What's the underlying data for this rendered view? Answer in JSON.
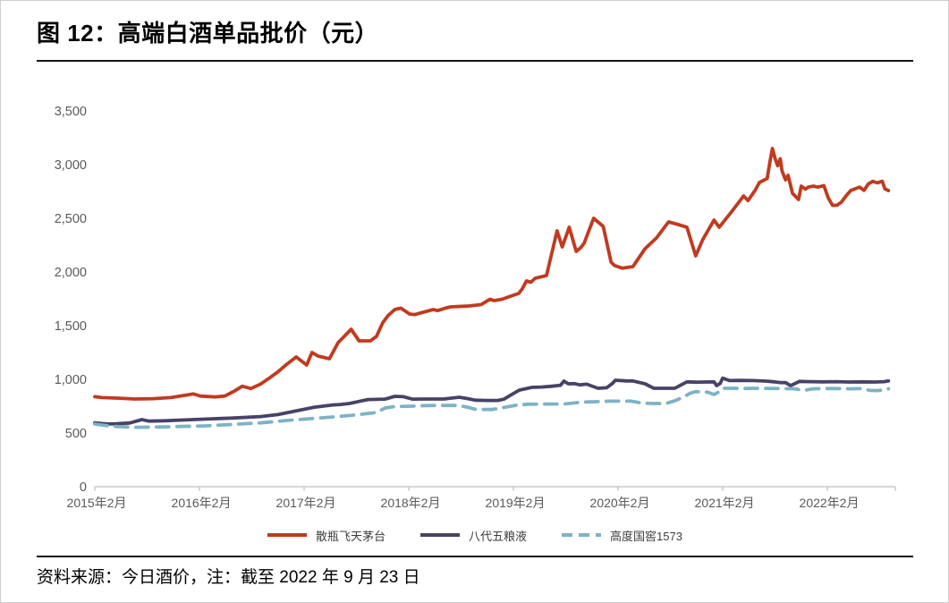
{
  "header": {
    "title": "图 12：高端白酒单品批价（元）"
  },
  "footer": {
    "source_note": "资料来源：今日酒价，注：截至 2022 年 9 月 23 日"
  },
  "chart_data": {
    "type": "line",
    "title": "高端白酒单品批价（元）",
    "x_unit": "months since 2015-02",
    "xlim": [
      0,
      91.8
    ],
    "ylim": [
      0,
      3500
    ],
    "grid": false,
    "legend_position": "bottom",
    "axis_color": "#c8c8c8",
    "label_color": "#595959",
    "y_ticks": [
      0,
      500,
      1000,
      1500,
      2000,
      2500,
      3000,
      3500
    ],
    "y_tick_labels": [
      "0",
      "500",
      "1,000",
      "1,500",
      "2,000",
      "2,500",
      "3,000",
      "3,500"
    ],
    "x_tick_month_positions": [
      0,
      12,
      24,
      36,
      48,
      60,
      72,
      84
    ],
    "x_tick_labels": [
      "2015年2月",
      "2016年2月",
      "2017年2月",
      "2018年2月",
      "2019年2月",
      "2020年2月",
      "2021年2月",
      "2022年2月"
    ],
    "series": [
      {
        "name": "散瓶飞天茅台",
        "color": "#c13a1f",
        "dash": null,
        "points": [
          [
            0,
            838
          ],
          [
            0.8,
            830
          ],
          [
            2.6,
            825
          ],
          [
            4.6,
            817
          ],
          [
            6.7,
            820
          ],
          [
            8.7,
            830
          ],
          [
            10.5,
            853
          ],
          [
            11.3,
            864
          ],
          [
            12.1,
            844
          ],
          [
            13.8,
            836
          ],
          [
            14.9,
            844
          ],
          [
            15.9,
            886
          ],
          [
            16.9,
            936
          ],
          [
            17.9,
            914
          ],
          [
            19,
            956
          ],
          [
            20,
            1011
          ],
          [
            21,
            1070
          ],
          [
            22,
            1140
          ],
          [
            23.1,
            1208
          ],
          [
            24.3,
            1133
          ],
          [
            24.9,
            1250
          ],
          [
            25.6,
            1217
          ],
          [
            26.9,
            1192
          ],
          [
            27.9,
            1342
          ],
          [
            28.9,
            1425
          ],
          [
            29.4,
            1467
          ],
          [
            30.3,
            1358
          ],
          [
            31.6,
            1358
          ],
          [
            32.3,
            1400
          ],
          [
            33,
            1525
          ],
          [
            33.6,
            1592
          ],
          [
            34.4,
            1650
          ],
          [
            35.1,
            1663
          ],
          [
            36.1,
            1608
          ],
          [
            36.7,
            1603
          ],
          [
            38.8,
            1650
          ],
          [
            39.3,
            1640
          ],
          [
            40.2,
            1663
          ],
          [
            40.8,
            1675
          ],
          [
            42.9,
            1683
          ],
          [
            44.3,
            1696
          ],
          [
            45.3,
            1746
          ],
          [
            45.8,
            1733
          ],
          [
            46.7,
            1746
          ],
          [
            47.7,
            1775
          ],
          [
            48.6,
            1800
          ],
          [
            49,
            1842
          ],
          [
            49.5,
            1917
          ],
          [
            50,
            1904
          ],
          [
            50.5,
            1942
          ],
          [
            51.8,
            1967
          ],
          [
            53,
            2383
          ],
          [
            53.6,
            2233
          ],
          [
            54.4,
            2417
          ],
          [
            55.2,
            2192
          ],
          [
            55.7,
            2225
          ],
          [
            56.1,
            2267
          ],
          [
            57.2,
            2500
          ],
          [
            58.3,
            2425
          ],
          [
            59.2,
            2092
          ],
          [
            59.6,
            2060
          ],
          [
            60.5,
            2035
          ],
          [
            61.7,
            2050
          ],
          [
            63.1,
            2217
          ],
          [
            64.4,
            2317
          ],
          [
            65.8,
            2467
          ],
          [
            66.9,
            2442
          ],
          [
            67.9,
            2417
          ],
          [
            68.9,
            2150
          ],
          [
            69.7,
            2300
          ],
          [
            71,
            2483
          ],
          [
            71.6,
            2417
          ],
          [
            73,
            2560
          ],
          [
            74.4,
            2708
          ],
          [
            74.9,
            2665
          ],
          [
            75.7,
            2758
          ],
          [
            76.2,
            2833
          ],
          [
            77.1,
            2870
          ],
          [
            77.4,
            3022
          ],
          [
            77.7,
            3150
          ],
          [
            78,
            3058
          ],
          [
            78.3,
            2990
          ],
          [
            78.6,
            3055
          ],
          [
            78.8,
            2942
          ],
          [
            79.2,
            2858
          ],
          [
            79.5,
            2900
          ],
          [
            80,
            2733
          ],
          [
            80.7,
            2675
          ],
          [
            81,
            2800
          ],
          [
            81.5,
            2772
          ],
          [
            81.8,
            2790
          ],
          [
            82.4,
            2800
          ],
          [
            82.9,
            2790
          ],
          [
            83.6,
            2805
          ],
          [
            84.1,
            2690
          ],
          [
            84.6,
            2620
          ],
          [
            85.1,
            2622
          ],
          [
            85.6,
            2650
          ],
          [
            86.2,
            2715
          ],
          [
            86.7,
            2760
          ],
          [
            87.2,
            2775
          ],
          [
            87.7,
            2790
          ],
          [
            88.2,
            2760
          ],
          [
            88.7,
            2820
          ],
          [
            89.2,
            2845
          ],
          [
            89.7,
            2830
          ],
          [
            90.3,
            2845
          ],
          [
            90.6,
            2775
          ],
          [
            91,
            2758
          ]
        ]
      },
      {
        "name": "八代五粮液",
        "color": "#494166",
        "dash": null,
        "points": [
          [
            0,
            594
          ],
          [
            0.8,
            588
          ],
          [
            1.5,
            584
          ],
          [
            2.5,
            586
          ],
          [
            4,
            593
          ],
          [
            5.4,
            625
          ],
          [
            6.2,
            611
          ],
          [
            8,
            614
          ],
          [
            9.7,
            620
          ],
          [
            12.8,
            630
          ],
          [
            15.9,
            640
          ],
          [
            19,
            653
          ],
          [
            21,
            672
          ],
          [
            23.1,
            706
          ],
          [
            25.1,
            739
          ],
          [
            27.2,
            761
          ],
          [
            28.2,
            766
          ],
          [
            29.2,
            775
          ],
          [
            30.3,
            794
          ],
          [
            31.3,
            812
          ],
          [
            33.3,
            816
          ],
          [
            34.4,
            842
          ],
          [
            35.4,
            838
          ],
          [
            36.4,
            816
          ],
          [
            38,
            817
          ],
          [
            40,
            817
          ],
          [
            41.8,
            833
          ],
          [
            42.8,
            820
          ],
          [
            43.6,
            806
          ],
          [
            45,
            803
          ],
          [
            46.2,
            803
          ],
          [
            46.9,
            815
          ],
          [
            47.8,
            858
          ],
          [
            48.7,
            900
          ],
          [
            50.1,
            925
          ],
          [
            51.2,
            928
          ],
          [
            52.3,
            935
          ],
          [
            53.4,
            945
          ],
          [
            53.8,
            983
          ],
          [
            54.3,
            958
          ],
          [
            55,
            960
          ],
          [
            55.6,
            948
          ],
          [
            56.4,
            955
          ],
          [
            57.7,
            917
          ],
          [
            58.7,
            922
          ],
          [
            59.3,
            958
          ],
          [
            59.7,
            992
          ],
          [
            61,
            985
          ],
          [
            61.7,
            985
          ],
          [
            63.1,
            958
          ],
          [
            64.1,
            917
          ],
          [
            66.5,
            917
          ],
          [
            67.9,
            977
          ],
          [
            69,
            973
          ],
          [
            70,
            975
          ],
          [
            71,
            977
          ],
          [
            71.3,
            942
          ],
          [
            71.7,
            962
          ],
          [
            72,
            1011
          ],
          [
            72.8,
            988
          ],
          [
            74,
            990
          ],
          [
            75.5,
            988
          ],
          [
            77,
            983
          ],
          [
            77.9,
            977
          ],
          [
            78.6,
            970
          ],
          [
            79.2,
            969
          ],
          [
            79.8,
            942
          ],
          [
            80.8,
            981
          ],
          [
            82,
            978
          ],
          [
            83.5,
            977
          ],
          [
            85,
            978
          ],
          [
            86.5,
            975
          ],
          [
            88,
            977
          ],
          [
            89.5,
            975
          ],
          [
            90.5,
            978
          ],
          [
            91,
            985
          ]
        ]
      },
      {
        "name": "高度国窖1573",
        "color": "#7eb2c6",
        "dash": [
          14,
          9
        ],
        "points": [
          [
            0,
            583
          ],
          [
            1,
            572
          ],
          [
            2,
            563
          ],
          [
            3,
            558
          ],
          [
            4.6,
            553
          ],
          [
            6.7,
            555
          ],
          [
            8.7,
            558
          ],
          [
            9.7,
            561
          ],
          [
            12.8,
            567
          ],
          [
            15.9,
            581
          ],
          [
            19,
            594
          ],
          [
            22,
            617
          ],
          [
            25.1,
            636
          ],
          [
            28.2,
            656
          ],
          [
            30.3,
            672
          ],
          [
            32.3,
            692
          ],
          [
            33.3,
            733
          ],
          [
            34.4,
            747
          ],
          [
            36.4,
            750
          ],
          [
            38,
            756
          ],
          [
            40,
            757
          ],
          [
            41.8,
            757
          ],
          [
            43,
            735
          ],
          [
            43.6,
            722
          ],
          [
            45,
            719
          ],
          [
            45.6,
            719
          ],
          [
            48.4,
            760
          ],
          [
            49.7,
            768
          ],
          [
            52,
            770
          ],
          [
            53.8,
            770
          ],
          [
            55.9,
            788
          ],
          [
            56.9,
            790
          ],
          [
            59,
            797
          ],
          [
            60.5,
            797
          ],
          [
            61.5,
            797
          ],
          [
            62.8,
            778
          ],
          [
            64,
            775
          ],
          [
            65.5,
            775
          ],
          [
            66.5,
            800
          ],
          [
            67.5,
            835
          ],
          [
            68.3,
            872
          ],
          [
            68.9,
            886
          ],
          [
            69.5,
            883
          ],
          [
            70.3,
            880
          ],
          [
            71,
            858
          ],
          [
            71.5,
            880
          ],
          [
            72,
            917
          ],
          [
            73,
            917
          ],
          [
            74.5,
            915
          ],
          [
            76,
            917
          ],
          [
            77.5,
            915
          ],
          [
            79,
            914
          ],
          [
            80.3,
            912
          ],
          [
            81.3,
            897
          ],
          [
            82.3,
            912
          ],
          [
            83.5,
            914
          ],
          [
            85,
            914
          ],
          [
            86.5,
            912
          ],
          [
            88,
            914
          ],
          [
            88.9,
            897
          ],
          [
            89.8,
            895
          ],
          [
            90.6,
            905
          ],
          [
            91,
            912
          ]
        ]
      }
    ]
  }
}
